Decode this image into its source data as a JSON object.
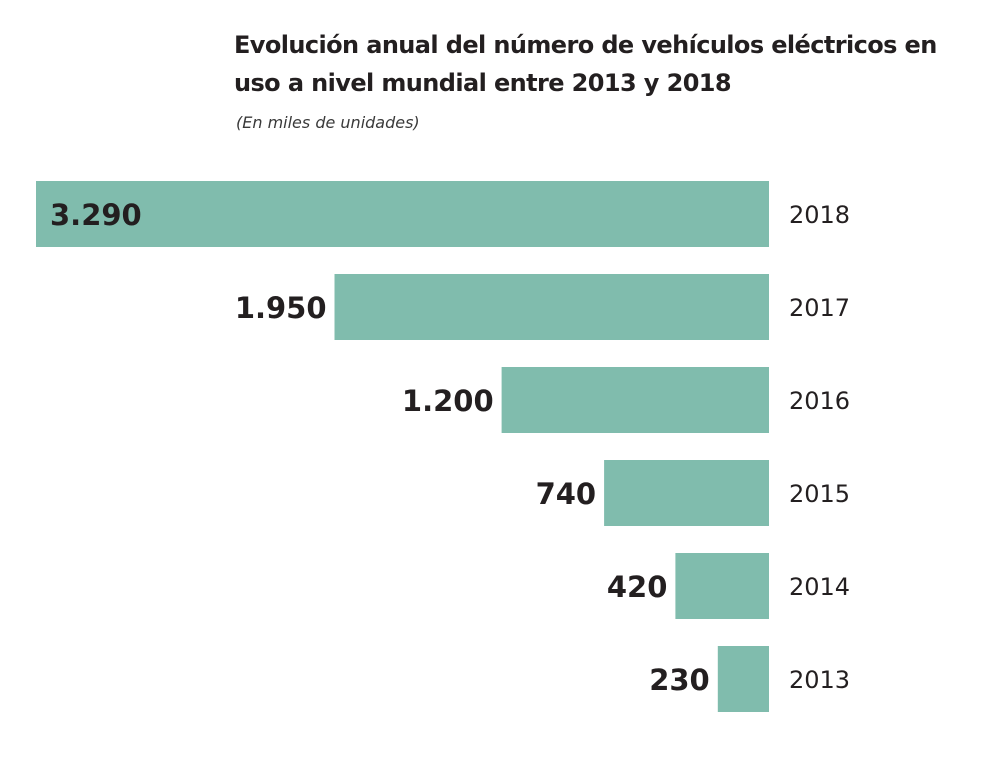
{
  "chart_data": {
    "type": "bar",
    "orientation": "horizontal",
    "title": "Evolución anual del número de vehículos eléctricos en uso a nivel mundial entre 2013 y 2018",
    "subtitle": "(En miles de unidades)",
    "categories": [
      "2018",
      "2017",
      "2016",
      "2015",
      "2014",
      "2013"
    ],
    "values": [
      3290,
      1950,
      1200,
      740,
      420,
      230
    ],
    "value_labels": [
      "3.290",
      "1.950",
      "1.200",
      "740",
      "420",
      "230"
    ],
    "xlim": [
      0,
      3290
    ],
    "bar_color": "#80bcad",
    "grid": false,
    "legend": "none"
  }
}
